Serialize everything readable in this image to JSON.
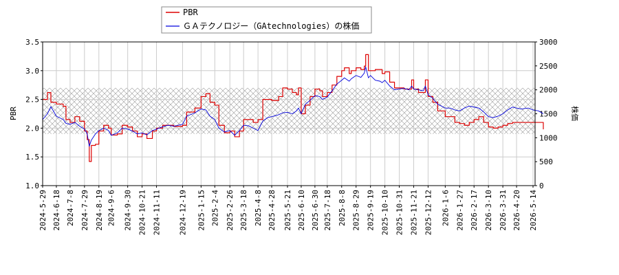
{
  "chart_data": {
    "type": "line",
    "title": "",
    "legend_placement": "top-center",
    "grid": true,
    "shaded_band": {
      "y_from": 1.9,
      "y_to": 2.7,
      "axis": "left",
      "pattern": "crosshatch"
    },
    "x_tick_labels": [
      "2024-5-29",
      "2024-6-18",
      "2024-7-8",
      "2024-7-29",
      "2024-8-19",
      "2024-9-6",
      "2024-9-30",
      "2024-10-21",
      "2024-11-11",
      "2024-12-19",
      "2025-1-15",
      "2025-2-4",
      "2025-2-26",
      "2025-3-18",
      "2025-4-8",
      "2025-4-28",
      "2025-5-21",
      "2025-6-10",
      "2025-6-30",
      "2025-7-18",
      "2025-8-8",
      "2025-8-29",
      "2025-9-19",
      "2025-10-10",
      "2025-10-31",
      "2025-11-21",
      "2025-12-12",
      "2026-1-6",
      "2026-1-27",
      "2026-2-17",
      "2026-3-10",
      "2026-3-31",
      "2026-4-20",
      "2026-5-14"
    ],
    "axes": {
      "left": {
        "label": "PBR",
        "min": 1.0,
        "max": 3.5,
        "ticks": [
          "1.0",
          "1.5",
          "2.0",
          "2.5",
          "3.0",
          "3.5"
        ]
      },
      "right": {
        "label": "株価",
        "min": 0,
        "max": 3000,
        "ticks": [
          "0",
          "500",
          "1000",
          "1500",
          "2000",
          "2500",
          "3000"
        ]
      }
    },
    "series": [
      {
        "name": "PBR",
        "color": "#dd0000",
        "axis": "left",
        "points": [
          [
            "2024-5-29",
            2.5
          ],
          [
            "2024-6-5",
            2.62
          ],
          [
            "2024-6-10",
            2.45
          ],
          [
            "2024-6-18",
            2.42
          ],
          [
            "2024-6-28",
            2.38
          ],
          [
            "2024-7-2",
            2.15
          ],
          [
            "2024-7-8",
            2.1
          ],
          [
            "2024-7-15",
            2.2
          ],
          [
            "2024-7-22",
            2.12
          ],
          [
            "2024-7-29",
            1.95
          ],
          [
            "2024-8-2",
            1.8
          ],
          [
            "2024-8-5",
            1.42
          ],
          [
            "2024-8-8",
            1.7
          ],
          [
            "2024-8-14",
            1.72
          ],
          [
            "2024-8-19",
            1.95
          ],
          [
            "2024-8-26",
            2.05
          ],
          [
            "2024-9-2",
            2.0
          ],
          [
            "2024-9-6",
            1.88
          ],
          [
            "2024-9-15",
            1.9
          ],
          [
            "2024-9-22",
            2.05
          ],
          [
            "2024-9-30",
            2.02
          ],
          [
            "2024-10-7",
            1.95
          ],
          [
            "2024-10-14",
            1.85
          ],
          [
            "2024-10-21",
            1.9
          ],
          [
            "2024-10-28",
            1.82
          ],
          [
            "2024-11-5",
            1.95
          ],
          [
            "2024-11-11",
            2.0
          ],
          [
            "2024-11-20",
            2.05
          ],
          [
            "2024-11-28",
            2.05
          ],
          [
            "2024-12-6",
            2.03
          ],
          [
            "2024-12-19",
            2.05
          ],
          [
            "2024-12-25",
            2.28
          ],
          [
            "2025-1-6",
            2.35
          ],
          [
            "2025-1-15",
            2.55
          ],
          [
            "2025-1-22",
            2.6
          ],
          [
            "2025-1-28",
            2.45
          ],
          [
            "2025-2-4",
            2.4
          ],
          [
            "2025-2-10",
            2.05
          ],
          [
            "2025-2-18",
            1.92
          ],
          [
            "2025-2-26",
            1.95
          ],
          [
            "2025-3-5",
            1.85
          ],
          [
            "2025-3-12",
            1.95
          ],
          [
            "2025-3-18",
            2.15
          ],
          [
            "2025-3-25",
            2.15
          ],
          [
            "2025-4-1",
            2.1
          ],
          [
            "2025-4-8",
            2.15
          ],
          [
            "2025-4-15",
            2.5
          ],
          [
            "2025-4-22",
            2.5
          ],
          [
            "2025-4-28",
            2.48
          ],
          [
            "2025-5-8",
            2.55
          ],
          [
            "2025-5-14",
            2.7
          ],
          [
            "2025-5-21",
            2.68
          ],
          [
            "2025-5-28",
            2.62
          ],
          [
            "2025-6-3",
            2.58
          ],
          [
            "2025-6-6",
            2.7
          ],
          [
            "2025-6-10",
            2.25
          ],
          [
            "2025-6-16",
            2.4
          ],
          [
            "2025-6-23",
            2.55
          ],
          [
            "2025-6-30",
            2.68
          ],
          [
            "2025-7-7",
            2.65
          ],
          [
            "2025-7-11",
            2.55
          ],
          [
            "2025-7-18",
            2.62
          ],
          [
            "2025-7-25",
            2.75
          ],
          [
            "2025-8-1",
            2.9
          ],
          [
            "2025-8-8",
            3.0
          ],
          [
            "2025-8-12",
            3.05
          ],
          [
            "2025-8-19",
            2.95
          ],
          [
            "2025-8-22",
            3.0
          ],
          [
            "2025-8-29",
            3.05
          ],
          [
            "2025-9-5",
            3.02
          ],
          [
            "2025-9-10",
            3.08
          ],
          [
            "2025-9-12",
            3.28
          ],
          [
            "2025-9-16",
            3.0
          ],
          [
            "2025-9-19",
            3.0
          ],
          [
            "2025-9-26",
            3.02
          ],
          [
            "2025-10-3",
            3.02
          ],
          [
            "2025-10-6",
            2.95
          ],
          [
            "2025-10-10",
            2.98
          ],
          [
            "2025-10-17",
            2.8
          ],
          [
            "2025-10-24",
            2.7
          ],
          [
            "2025-10-31",
            2.7
          ],
          [
            "2025-11-7",
            2.68
          ],
          [
            "2025-11-14",
            2.68
          ],
          [
            "2025-11-18",
            2.84
          ],
          [
            "2025-11-21",
            2.68
          ],
          [
            "2025-11-28",
            2.62
          ],
          [
            "2025-12-5",
            2.62
          ],
          [
            "2025-12-8",
            2.84
          ],
          [
            "2025-12-12",
            2.55
          ],
          [
            "2025-12-19",
            2.45
          ],
          [
            "2025-12-26",
            2.3
          ],
          [
            "2026-1-6",
            2.2
          ],
          [
            "2026-1-13",
            2.2
          ],
          [
            "2026-1-20",
            2.1
          ],
          [
            "2026-1-27",
            2.08
          ],
          [
            "2026-2-3",
            2.05
          ],
          [
            "2026-2-10",
            2.1
          ],
          [
            "2026-2-17",
            2.15
          ],
          [
            "2026-2-24",
            2.2
          ],
          [
            "2026-3-3",
            2.1
          ],
          [
            "2026-3-10",
            2.02
          ],
          [
            "2026-3-17",
            2.0
          ],
          [
            "2026-3-24",
            2.02
          ],
          [
            "2026-3-31",
            2.05
          ],
          [
            "2026-4-7",
            2.08
          ],
          [
            "2026-4-14",
            2.1
          ],
          [
            "2026-4-20",
            2.1
          ],
          [
            "2026-4-27",
            2.1
          ],
          [
            "2026-5-7",
            2.1
          ],
          [
            "2026-5-14",
            2.1
          ],
          [
            "2026-5-22",
            2.1
          ],
          [
            "2026-5-29",
            1.98
          ]
        ]
      },
      {
        "name": "ＧＡテクノロジー（GAtechnologies）の株価",
        "color": "#0000dd",
        "axis": "right",
        "points": [
          [
            "2024-5-29",
            1380
          ],
          [
            "2024-6-5",
            1500
          ],
          [
            "2024-6-10",
            1650
          ],
          [
            "2024-6-18",
            1450
          ],
          [
            "2024-6-28",
            1380
          ],
          [
            "2024-7-2",
            1300
          ],
          [
            "2024-7-8",
            1280
          ],
          [
            "2024-7-15",
            1320
          ],
          [
            "2024-7-22",
            1240
          ],
          [
            "2024-7-29",
            1180
          ],
          [
            "2024-8-2",
            1080
          ],
          [
            "2024-8-5",
            820
          ],
          [
            "2024-8-8",
            950
          ],
          [
            "2024-8-14",
            1080
          ],
          [
            "2024-8-19",
            1150
          ],
          [
            "2024-8-26",
            1200
          ],
          [
            "2024-9-2",
            1150
          ],
          [
            "2024-9-6",
            1050
          ],
          [
            "2024-9-15",
            1100
          ],
          [
            "2024-9-22",
            1200
          ],
          [
            "2024-9-30",
            1180
          ],
          [
            "2024-10-7",
            1140
          ],
          [
            "2024-10-14",
            1080
          ],
          [
            "2024-10-21",
            1100
          ],
          [
            "2024-10-28",
            1060
          ],
          [
            "2024-11-5",
            1150
          ],
          [
            "2024-11-11",
            1180
          ],
          [
            "2024-11-20",
            1230
          ],
          [
            "2024-11-28",
            1260
          ],
          [
            "2024-12-6",
            1240
          ],
          [
            "2024-12-19",
            1280
          ],
          [
            "2024-12-25",
            1450
          ],
          [
            "2025-1-6",
            1520
          ],
          [
            "2025-1-15",
            1600
          ],
          [
            "2025-1-22",
            1580
          ],
          [
            "2025-1-28",
            1450
          ],
          [
            "2025-2-4",
            1380
          ],
          [
            "2025-2-10",
            1200
          ],
          [
            "2025-2-18",
            1120
          ],
          [
            "2025-2-26",
            1150
          ],
          [
            "2025-3-5",
            1050
          ],
          [
            "2025-3-12",
            1150
          ],
          [
            "2025-3-18",
            1260
          ],
          [
            "2025-3-25",
            1250
          ],
          [
            "2025-4-1",
            1200
          ],
          [
            "2025-4-8",
            1150
          ],
          [
            "2025-4-15",
            1350
          ],
          [
            "2025-4-22",
            1420
          ],
          [
            "2025-4-28",
            1440
          ],
          [
            "2025-5-8",
            1480
          ],
          [
            "2025-5-14",
            1520
          ],
          [
            "2025-5-21",
            1530
          ],
          [
            "2025-5-28",
            1500
          ],
          [
            "2025-6-3",
            1560
          ],
          [
            "2025-6-6",
            1620
          ],
          [
            "2025-6-10",
            1500
          ],
          [
            "2025-6-16",
            1700
          ],
          [
            "2025-6-23",
            1780
          ],
          [
            "2025-6-30",
            1880
          ],
          [
            "2025-7-7",
            1860
          ],
          [
            "2025-7-11",
            1800
          ],
          [
            "2025-7-18",
            1850
          ],
          [
            "2025-7-25",
            1980
          ],
          [
            "2025-8-1",
            2120
          ],
          [
            "2025-8-8",
            2200
          ],
          [
            "2025-8-12",
            2250
          ],
          [
            "2025-8-19",
            2180
          ],
          [
            "2025-8-22",
            2230
          ],
          [
            "2025-8-29",
            2300
          ],
          [
            "2025-9-5",
            2260
          ],
          [
            "2025-9-10",
            2350
          ],
          [
            "2025-9-12",
            2480
          ],
          [
            "2025-9-16",
            2250
          ],
          [
            "2025-9-19",
            2300
          ],
          [
            "2025-9-26",
            2200
          ],
          [
            "2025-10-3",
            2180
          ],
          [
            "2025-10-6",
            2150
          ],
          [
            "2025-10-10",
            2200
          ],
          [
            "2025-10-17",
            2080
          ],
          [
            "2025-10-24",
            2000
          ],
          [
            "2025-10-31",
            2020
          ],
          [
            "2025-11-7",
            2030
          ],
          [
            "2025-11-14",
            2000
          ],
          [
            "2025-11-18",
            2080
          ],
          [
            "2025-11-21",
            2020
          ],
          [
            "2025-11-28",
            2000
          ],
          [
            "2025-12-5",
            1980
          ],
          [
            "2025-12-8",
            2080
          ],
          [
            "2025-12-12",
            1900
          ],
          [
            "2025-12-19",
            1820
          ],
          [
            "2025-12-26",
            1700
          ],
          [
            "2026-1-6",
            1620
          ],
          [
            "2026-1-13",
            1620
          ],
          [
            "2026-1-20",
            1580
          ],
          [
            "2026-1-27",
            1560
          ],
          [
            "2026-2-3",
            1620
          ],
          [
            "2026-2-10",
            1660
          ],
          [
            "2026-2-17",
            1640
          ],
          [
            "2026-2-24",
            1620
          ],
          [
            "2026-3-3",
            1540
          ],
          [
            "2026-3-10",
            1440
          ],
          [
            "2026-3-17",
            1420
          ],
          [
            "2026-3-24",
            1450
          ],
          [
            "2026-3-31",
            1500
          ],
          [
            "2026-4-7",
            1580
          ],
          [
            "2026-4-14",
            1640
          ],
          [
            "2026-4-20",
            1620
          ],
          [
            "2026-4-27",
            1600
          ],
          [
            "2026-5-7",
            1620
          ],
          [
            "2026-5-14",
            1580
          ],
          [
            "2026-5-22",
            1560
          ],
          [
            "2026-5-29",
            1500
          ]
        ]
      }
    ]
  }
}
